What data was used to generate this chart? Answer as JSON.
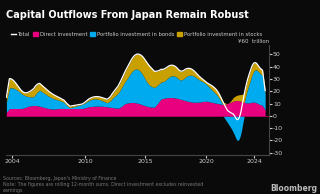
{
  "title": "Capital Outflows From Japan Remain Robust",
  "legend_items": [
    "Total",
    "Direct investment",
    "Portfolio investment in bonds",
    "Portfolio investment in stocks"
  ],
  "legend_colors": [
    "#ffffff",
    "#e8007f",
    "#00aaee",
    "#c8a000"
  ],
  "ylabel": "¥60  trillion",
  "yticks": [
    50,
    40,
    30,
    20,
    10,
    0,
    -10,
    -20,
    -30
  ],
  "xticks": [
    2004,
    2010,
    2015,
    2020,
    2024
  ],
  "source_text": "Sources: Bloomberg, Japan's Ministry of Finance\nNote: The figures are rolling 12-month sums. Direct investment excludes reinvested\nearnings",
  "bloomberg_text": "Bloomberg",
  "background_color": "#0a0a0a",
  "text_color": "#cccccc",
  "ylim": [
    -32,
    58
  ],
  "xlim": [
    2003.5,
    2025.2
  ]
}
